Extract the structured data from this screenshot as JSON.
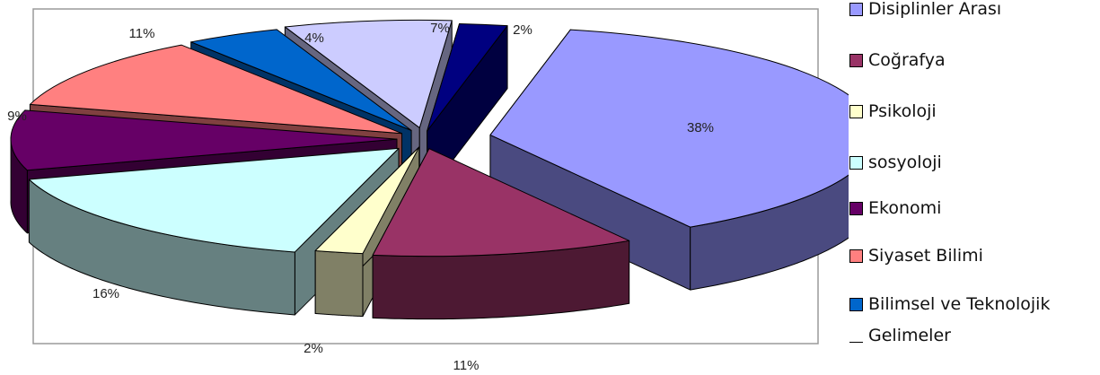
{
  "chart_data": {
    "type": "pie",
    "style": "3d-exploded",
    "title": "",
    "series": [
      {
        "name": "Disiplinler Arası",
        "value": 38,
        "label": "38%",
        "color": "#9999FF",
        "side_color": "#4A4A80"
      },
      {
        "name": "Coğrafya",
        "value": 11,
        "label": "11%",
        "color": "#993366",
        "side_color": "#4D1933"
      },
      {
        "name": "Psikoloji",
        "value": 2,
        "label": "2%",
        "color": "#FFFFCC",
        "side_color": "#808066"
      },
      {
        "name": "sosyoloji",
        "value": 16,
        "label": "16%",
        "color": "#CCFFFF",
        "side_color": "#668080"
      },
      {
        "name": "Ekonomi",
        "value": 9,
        "label": "9%",
        "color": "#660066",
        "side_color": "#330033"
      },
      {
        "name": "Siyaset Bilimi",
        "value": 11,
        "label": "11%",
        "color": "#FF8080",
        "side_color": "#804040"
      },
      {
        "name": "Bilimsel ve Teknolojik Gelimeler",
        "value": 4,
        "label": "4%",
        "color": "#0066CC",
        "side_color": "#003366"
      },
      {
        "name": "",
        "value": 7,
        "label": "7%",
        "color": "#CCCCFF",
        "side_color": "#666680"
      },
      {
        "name": "",
        "value": 2,
        "label": "2%",
        "color": "#000080",
        "side_color": "#000040"
      }
    ],
    "legend_position": "right",
    "legend": [
      {
        "text": "Disiplinler Arası",
        "color": "#9999FF"
      },
      {
        "text": "Coğrafya",
        "color": "#993366"
      },
      {
        "text": "Psikoloji",
        "color": "#FFFFCC"
      },
      {
        "text": "sosyoloji",
        "color": "#CCFFFF"
      },
      {
        "text": "Ekonomi",
        "color": "#660066"
      },
      {
        "text": "Siyaset Bilimi",
        "color": "#FF8080"
      },
      {
        "text": "Bilimsel ve Teknolojik",
        "color": "#0066CC"
      },
      {
        "text": "Gelimeler",
        "color": ""
      }
    ]
  }
}
